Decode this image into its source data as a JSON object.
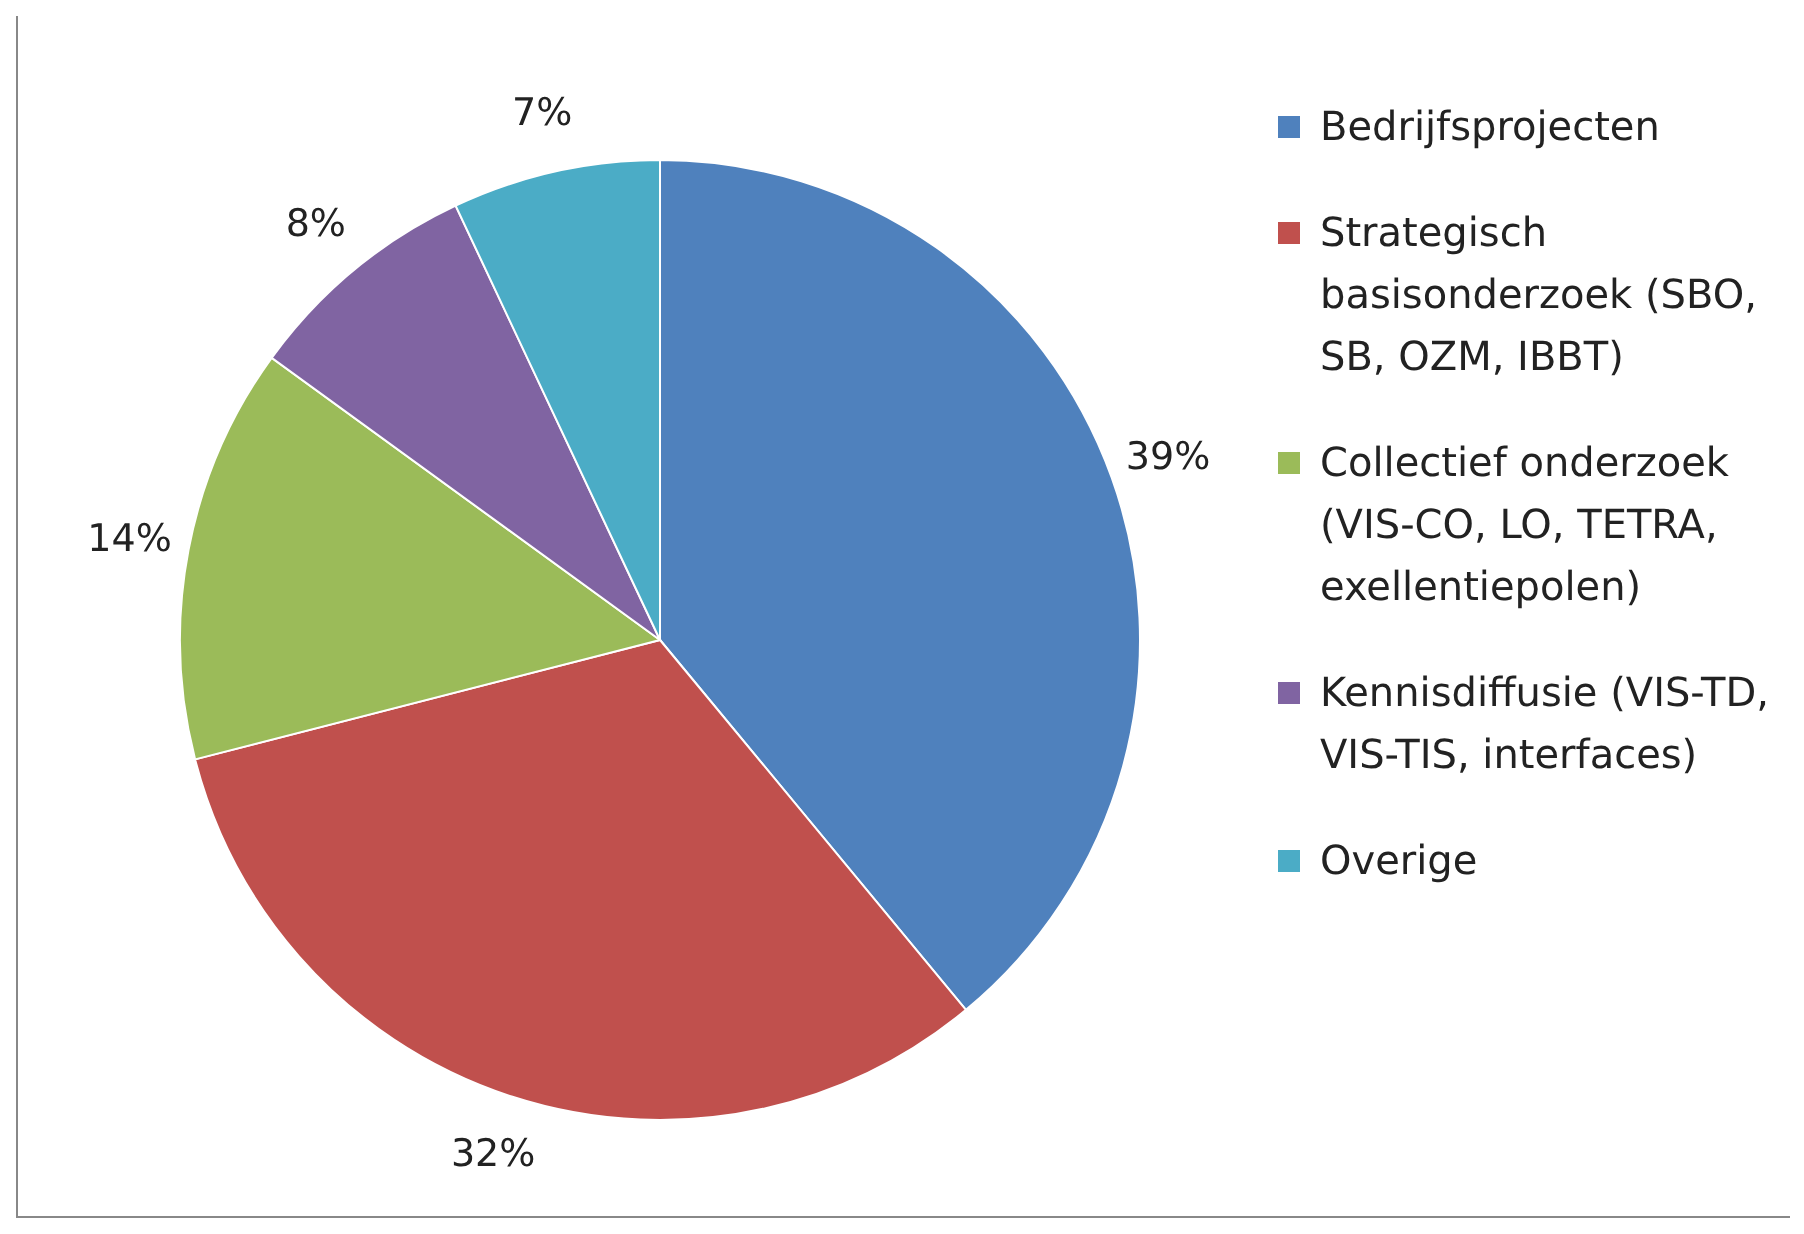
{
  "chart_data": {
    "type": "pie",
    "categories": [
      "Bedrijfsprojecten",
      "Strategisch basisonderzoek (SBO, SB, OZM, IBBT)",
      "Collectief onderzoek (VIS-CO, LO, TETRA, exellentiepolen)",
      "Kennisdiffusie (VIS-TD, VIS-TIS, interfaces)",
      "Overige"
    ],
    "values": [
      39,
      32,
      14,
      8,
      7
    ],
    "colors": [
      "#4f81bd",
      "#c0504d",
      "#9bbb59",
      "#8064a2",
      "#4bacc6"
    ],
    "value_labels": [
      "39%",
      "32%",
      "14%",
      "8%",
      "7%"
    ],
    "legend": "right"
  }
}
